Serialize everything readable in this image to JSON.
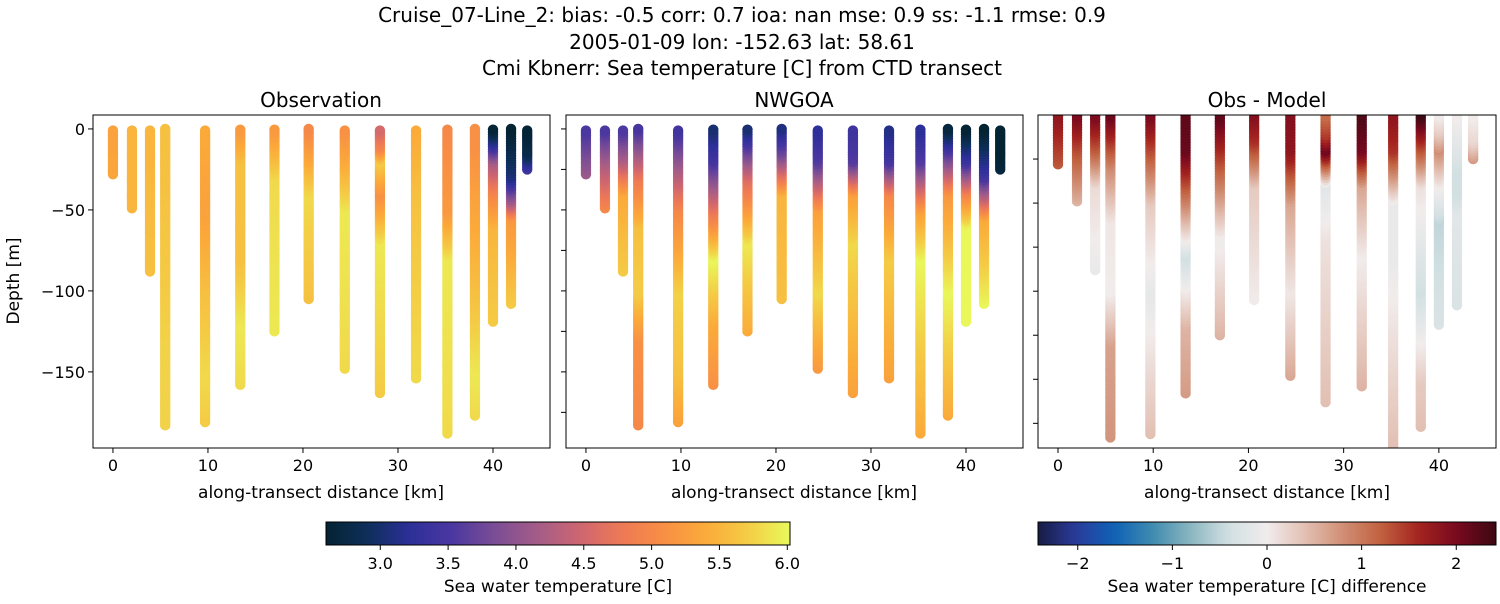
{
  "title_lines": [
    "Cruise_07-Line_2: bias: -0.5  corr: 0.7  ioa: nan  mse: 0.9  ss: -1.1  rmse: 0.9",
    "2005-01-09 lon: -152.63 lat: 58.61",
    "Cmi Kbnerr: Sea temperature [C] from CTD transect"
  ],
  "colors": {
    "thermal": [
      "#042333",
      "#0e2f5a",
      "#2d2f9a",
      "#4b37a0",
      "#7b4d95",
      "#a35c88",
      "#cd6571",
      "#ee7956",
      "#f88f45",
      "#fbaa3a",
      "#f4cc45",
      "#e8fa5b"
    ],
    "balance": [
      "#181c43",
      "#2a3b9b",
      "#0f62b6",
      "#3f8bb0",
      "#8bb6c0",
      "#d2e0e2",
      "#f1ecec",
      "#e2bfb2",
      "#d08e74",
      "#c1603f",
      "#a3221f",
      "#77091f",
      "#3c0912"
    ]
  },
  "chart_data": [
    {
      "type": "scatter",
      "title": "Observation",
      "xlabel": "along-transect distance [km]",
      "ylabel": "Depth [m]",
      "xlim": [
        -2.1,
        46
      ],
      "ylim": [
        -197,
        8.6
      ],
      "xticks": [
        "0",
        "10",
        "20",
        "30",
        "40"
      ],
      "yticks": [
        "0",
        "−50",
        "−100",
        "−150"
      ],
      "variable": "obs",
      "colormap": "thermal",
      "clim": [
        2.6,
        6.02
      ]
    },
    {
      "type": "scatter",
      "title": "NWGOA",
      "xlabel": "along-transect distance [km]",
      "xlim": [
        -2.1,
        46
      ],
      "ylim": [
        -197,
        8.6
      ],
      "xticks": [
        "0",
        "10",
        "20",
        "30",
        "40"
      ],
      "variable": "model",
      "colormap": "thermal",
      "clim": [
        2.6,
        6.02
      ]
    },
    {
      "type": "scatter",
      "title": "Obs - Model",
      "xlabel": "along-transect distance [km]",
      "xlim": [
        -2.1,
        46
      ],
      "ylim": [
        -189,
        0
      ],
      "xticks": [
        "0",
        "10",
        "20",
        "30",
        "40"
      ],
      "variable": "diff",
      "colormap": "balance",
      "clim": [
        -2.42,
        2.42
      ]
    }
  ],
  "casts": [
    {
      "x": 0,
      "depth": [
        0,
        28
      ],
      "obs": [
        5.3,
        5.35
      ],
      "model": [
        3.5,
        4.1
      ]
    },
    {
      "x": 2,
      "depth": [
        0,
        20,
        49
      ],
      "obs": [
        5.5,
        5.5,
        5.5
      ],
      "model": [
        3.5,
        4.2,
        5.0
      ]
    },
    {
      "x": 3.9,
      "depth": [
        0,
        20,
        40,
        88
      ],
      "obs": [
        5.5,
        5.5,
        5.55,
        5.6
      ],
      "model": [
        3.5,
        4.3,
        5.4,
        5.7
      ]
    },
    {
      "x": 5.5,
      "depth": [
        0,
        30,
        60,
        100,
        130,
        183
      ],
      "obs": [
        5.6,
        5.6,
        5.65,
        5.7,
        5.75,
        5.75
      ],
      "model": [
        3.5,
        4.8,
        5.6,
        5.7,
        5.1,
        5.0
      ]
    },
    {
      "x": 9.7,
      "depth": [
        0,
        50,
        100,
        150,
        181
      ],
      "obs": [
        5.4,
        5.3,
        5.6,
        5.8,
        5.7
      ],
      "model": [
        3.4,
        5.0,
        5.75,
        5.6,
        5.3
      ]
    },
    {
      "x": 13.4,
      "depth": [
        0,
        20,
        80,
        120,
        158
      ],
      "obs": [
        5.2,
        5.6,
        5.6,
        5.9,
        5.8
      ],
      "model": [
        3.0,
        3.5,
        6.0,
        5.4,
        5.1
      ]
    },
    {
      "x": 17,
      "depth": [
        0,
        30,
        70,
        125
      ],
      "obs": [
        5.2,
        5.8,
        5.85,
        5.9
      ],
      "model": [
        3.0,
        4.6,
        5.9,
        5.4
      ]
    },
    {
      "x": 20.6,
      "depth": [
        0,
        15,
        40,
        105
      ],
      "obs": [
        5.0,
        5.3,
        5.8,
        5.6
      ],
      "model": [
        3.1,
        3.8,
        5.5,
        5.6
      ]
    },
    {
      "x": 24.4,
      "depth": [
        0,
        20,
        50,
        100,
        148
      ],
      "obs": [
        5.1,
        5.4,
        5.9,
        5.85,
        5.8
      ],
      "model": [
        3.2,
        3.6,
        5.3,
        5.8,
        5.2
      ]
    },
    {
      "x": 28.1,
      "depth": [
        0,
        12,
        20,
        40,
        70,
        163
      ],
      "obs": [
        4.5,
        5.0,
        5.7,
        5.1,
        5.9,
        5.7
      ],
      "model": [
        3.4,
        3.5,
        3.6,
        5.3,
        5.8,
        5.3
      ]
    },
    {
      "x": 31.9,
      "depth": [
        0,
        20,
        40,
        80,
        154
      ],
      "obs": [
        5.4,
        5.5,
        5.6,
        5.7,
        5.8
      ],
      "model": [
        3.1,
        3.5,
        5.0,
        5.7,
        5.3
      ]
    },
    {
      "x": 35.2,
      "depth": [
        0,
        20,
        50,
        80,
        188
      ],
      "obs": [
        5.0,
        5.1,
        5.2,
        5.9,
        5.8
      ],
      "model": [
        3.2,
        3.6,
        5.3,
        6.0,
        5.4
      ]
    },
    {
      "x": 38.1,
      "depth": [
        0,
        10,
        40,
        100,
        150,
        177
      ],
      "obs": [
        5.1,
        5.1,
        5.3,
        5.6,
        5.9,
        5.8
      ],
      "model": [
        2.7,
        3.3,
        5.2,
        6.0,
        5.6,
        5.4
      ]
    },
    {
      "x": 40,
      "depth": [
        0,
        10,
        20,
        40,
        60,
        119
      ],
      "obs": [
        2.6,
        3.3,
        4.2,
        5.0,
        5.5,
        5.7
      ],
      "model": [
        2.6,
        3.0,
        3.4,
        5.0,
        6.0,
        6.0
      ]
    },
    {
      "x": 41.9,
      "depth": [
        0,
        25,
        30,
        45,
        55,
        108
      ],
      "obs": [
        2.6,
        3.0,
        3.1,
        4.2,
        5.2,
        5.7
      ],
      "model": [
        2.6,
        3.3,
        3.5,
        4.6,
        5.4,
        6.0
      ]
    },
    {
      "x": 43.6,
      "depth": [
        0,
        15,
        25
      ],
      "obs": [
        2.6,
        2.8,
        3.4
      ],
      "model": [
        2.6,
        2.6,
        2.7
      ]
    }
  ],
  "colorbars": [
    {
      "label": "Sea water temperature [C]",
      "ticks": [
        "3.0",
        "3.5",
        "4.0",
        "4.5",
        "5.0",
        "5.5",
        "6.0"
      ],
      "tick_values": [
        3.0,
        3.5,
        4.0,
        4.5,
        5.0,
        5.5,
        6.0
      ],
      "range": [
        2.6,
        6.02
      ],
      "colormap": "thermal"
    },
    {
      "label": "Sea water temperature [C] difference",
      "ticks": [
        "−2",
        "−1",
        "0",
        "1",
        "2"
      ],
      "tick_values": [
        -2,
        -1,
        0,
        1,
        2
      ],
      "range": [
        -2.42,
        2.42
      ],
      "colormap": "balance"
    }
  ]
}
